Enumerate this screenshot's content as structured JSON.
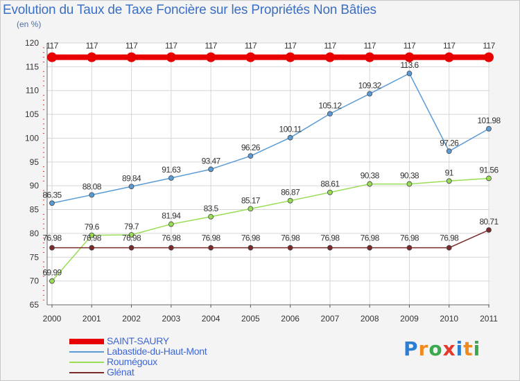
{
  "chart_data": {
    "type": "line",
    "title": "Evolution du Taux de Taxe Foncière sur les Propriétés Non Bâties",
    "ylabel": "(en %)",
    "xlabel": "",
    "categories": [
      "2000",
      "2001",
      "2002",
      "2003",
      "2004",
      "2005",
      "2006",
      "2007",
      "2008",
      "2009",
      "2010",
      "2011"
    ],
    "ylim": [
      65,
      120
    ],
    "yticks": [
      65,
      70,
      75,
      80,
      85,
      90,
      95,
      100,
      105,
      110,
      115,
      120
    ],
    "grid": true,
    "legend_position": "bottom-left",
    "series": [
      {
        "name": "SAINT-SAURY",
        "color": "#e80000",
        "values": [
          117,
          117,
          117,
          117,
          117,
          117,
          117,
          117,
          117,
          117,
          117,
          117
        ],
        "labels": [
          "117",
          "117",
          "117",
          "117",
          "117",
          "117",
          "117",
          "117",
          "117",
          "117",
          "117",
          "117"
        ]
      },
      {
        "name": "Labastide-du-Haut-Mont",
        "color": "#5b9bd5",
        "values": [
          86.35,
          88.08,
          89.84,
          91.63,
          93.47,
          96.26,
          100.11,
          105.12,
          109.32,
          113.6,
          97.26,
          101.98
        ],
        "labels": [
          "86.35",
          "88.08",
          "89.84",
          "91.63",
          "93.47",
          "96.26",
          "100.11",
          "105.12",
          "109.32",
          "113.6",
          "97.26",
          "101.98"
        ]
      },
      {
        "name": "Roumégoux",
        "color": "#99dd55",
        "values": [
          69.99,
          79.6,
          79.7,
          81.94,
          83.5,
          85.17,
          86.87,
          88.61,
          90.38,
          90.38,
          91,
          91.56
        ],
        "labels": [
          "69.99",
          "79.6",
          "79.7",
          "81.94",
          "83.5",
          "85.17",
          "86.87",
          "88.61",
          "90.38",
          "90.38",
          "91",
          "91.56"
        ]
      },
      {
        "name": "Glénat",
        "color": "#7a2a2a",
        "values": [
          76.98,
          76.98,
          76.98,
          76.98,
          76.98,
          76.98,
          76.98,
          76.98,
          76.98,
          76.98,
          76.98,
          80.71
        ],
        "labels": [
          "76.98",
          "76.98",
          "76.98",
          "76.98",
          "76.98",
          "76.98",
          "76.98",
          "76.98",
          "76.98",
          "76.98",
          "76.98",
          "80.71"
        ]
      }
    ]
  },
  "logo": {
    "letters": [
      "P",
      "r",
      "o",
      "x",
      "i",
      "t",
      "i"
    ],
    "colors": [
      "#2a7fd4",
      "#f08a1c",
      "#3aa84b",
      "#e43a2e",
      "#2a7fd4",
      "#f08a1c",
      "#3aa84b"
    ]
  }
}
